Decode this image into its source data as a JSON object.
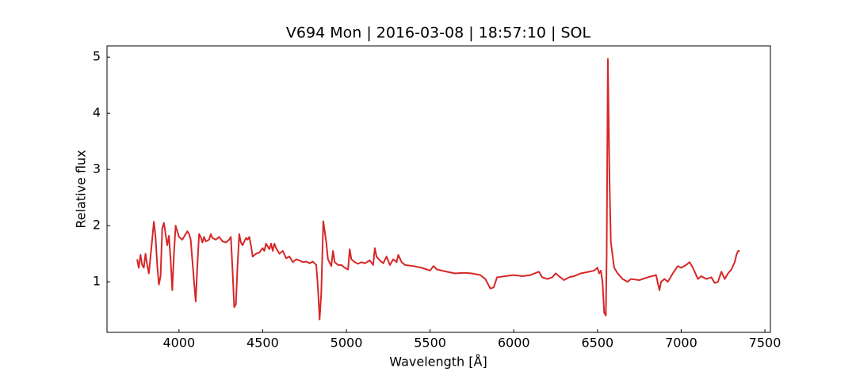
{
  "chart_data": {
    "type": "line",
    "title": "V694 Mon | 2016-03-08 | 18:57:10 | SOL",
    "x_label": "Wavelength [Å]",
    "y_label": "Relative flux",
    "xlim": [
      3570,
      7533
    ],
    "ylim": [
      0.1,
      5.2
    ],
    "xticks": [
      4000,
      4500,
      5000,
      5500,
      6000,
      6500,
      7000,
      7500
    ],
    "yticks": [
      1,
      2,
      3,
      4,
      5
    ],
    "grid": false,
    "series": [
      {
        "name": "V694 Mon",
        "color": "#d62728",
        "x": [
          3750,
          3760,
          3770,
          3780,
          3790,
          3800,
          3810,
          3820,
          3835,
          3850,
          3860,
          3870,
          3880,
          3890,
          3900,
          3910,
          3920,
          3930,
          3940,
          3950,
          3960,
          3970,
          3980,
          3990,
          4000,
          4020,
          4040,
          4050,
          4060,
          4070,
          4090,
          4100,
          4110,
          4120,
          4130,
          4140,
          4150,
          4160,
          4180,
          4190,
          4200,
          4220,
          4240,
          4260,
          4280,
          4300,
          4310,
          4320,
          4330,
          4340,
          4350,
          4360,
          4370,
          4380,
          4400,
          4410,
          4420,
          4430,
          4440,
          4460,
          4480,
          4500,
          4510,
          4520,
          4540,
          4550,
          4560,
          4570,
          4580,
          4600,
          4620,
          4640,
          4660,
          4680,
          4700,
          4720,
          4740,
          4760,
          4780,
          4800,
          4820,
          4830,
          4840,
          4850,
          4862,
          4880,
          4890,
          4910,
          4920,
          4930,
          4950,
          4970,
          4990,
          5010,
          5020,
          5030,
          5050,
          5070,
          5090,
          5110,
          5140,
          5160,
          5170,
          5180,
          5200,
          5220,
          5240,
          5260,
          5280,
          5300,
          5310,
          5330,
          5350,
          5400,
          5450,
          5500,
          5520,
          5540,
          5600,
          5650,
          5700,
          5750,
          5800,
          5830,
          5860,
          5880,
          5900,
          5950,
          6000,
          6050,
          6100,
          6150,
          6170,
          6200,
          6230,
          6250,
          6270,
          6300,
          6330,
          6360,
          6400,
          6450,
          6480,
          6500,
          6510,
          6520,
          6530,
          6540,
          6550,
          6555,
          6562,
          6572,
          6580,
          6600,
          6620,
          6650,
          6680,
          6700,
          6750,
          6800,
          6850,
          6870,
          6880,
          6900,
          6920,
          6950,
          6980,
          7000,
          7030,
          7050,
          7070,
          7100,
          7120,
          7150,
          7180,
          7200,
          7220,
          7240,
          7260,
          7280,
          7300,
          7320,
          7330,
          7340,
          7350
        ],
        "values": [
          1.4,
          1.25,
          1.48,
          1.3,
          1.25,
          1.5,
          1.3,
          1.15,
          1.6,
          2.07,
          1.8,
          1.3,
          0.95,
          1.1,
          1.95,
          2.05,
          1.85,
          1.65,
          1.82,
          1.4,
          0.85,
          1.5,
          2.0,
          1.9,
          1.8,
          1.75,
          1.85,
          1.9,
          1.85,
          1.75,
          1.0,
          0.65,
          1.3,
          1.85,
          1.8,
          1.7,
          1.8,
          1.72,
          1.75,
          1.85,
          1.78,
          1.75,
          1.8,
          1.72,
          1.7,
          1.75,
          1.8,
          1.2,
          0.55,
          0.6,
          1.3,
          1.85,
          1.7,
          1.65,
          1.78,
          1.75,
          1.8,
          1.65,
          1.45,
          1.5,
          1.52,
          1.6,
          1.55,
          1.68,
          1.58,
          1.68,
          1.55,
          1.68,
          1.6,
          1.5,
          1.55,
          1.42,
          1.45,
          1.35,
          1.4,
          1.38,
          1.35,
          1.36,
          1.33,
          1.36,
          1.3,
          0.9,
          0.33,
          0.8,
          2.08,
          1.7,
          1.4,
          1.28,
          1.55,
          1.35,
          1.3,
          1.3,
          1.25,
          1.22,
          1.58,
          1.4,
          1.35,
          1.32,
          1.35,
          1.33,
          1.38,
          1.3,
          1.6,
          1.45,
          1.38,
          1.33,
          1.45,
          1.3,
          1.4,
          1.35,
          1.48,
          1.35,
          1.3,
          1.28,
          1.25,
          1.2,
          1.28,
          1.22,
          1.18,
          1.15,
          1.16,
          1.15,
          1.12,
          1.05,
          0.88,
          0.9,
          1.08,
          1.1,
          1.12,
          1.1,
          1.12,
          1.18,
          1.08,
          1.05,
          1.08,
          1.15,
          1.1,
          1.03,
          1.08,
          1.1,
          1.15,
          1.18,
          1.2,
          1.25,
          1.15,
          1.2,
          1.0,
          0.45,
          0.4,
          1.5,
          4.97,
          2.8,
          1.7,
          1.25,
          1.15,
          1.05,
          1.0,
          1.05,
          1.03,
          1.08,
          1.12,
          0.85,
          1.0,
          1.05,
          1.0,
          1.15,
          1.28,
          1.25,
          1.3,
          1.35,
          1.25,
          1.05,
          1.1,
          1.05,
          1.08,
          0.98,
          1.0,
          1.18,
          1.05,
          1.15,
          1.22,
          1.35,
          1.48,
          1.55,
          1.55
        ]
      }
    ]
  }
}
